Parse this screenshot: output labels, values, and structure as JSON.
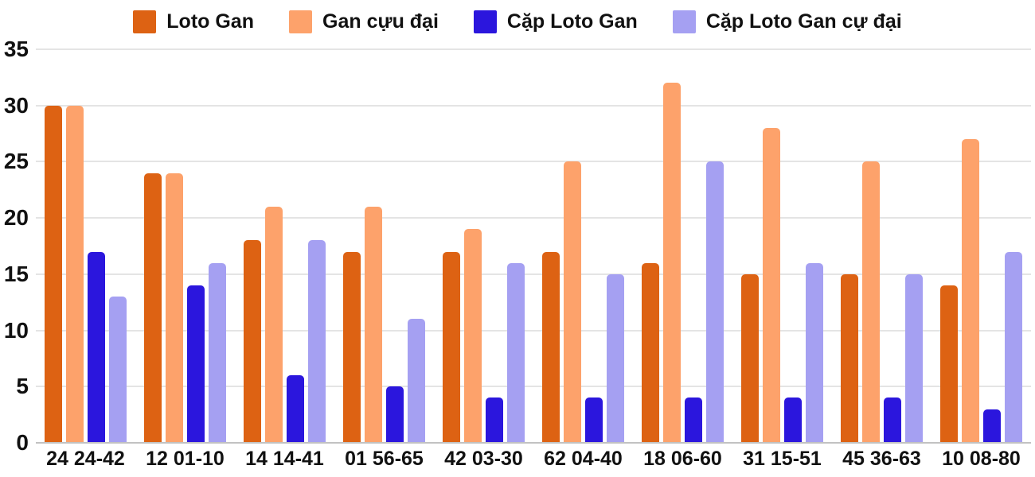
{
  "chart_data": {
    "type": "bar",
    "title": "",
    "xlabel": "",
    "ylabel": "",
    "categories": [
      "24 24-42",
      "12 01-10",
      "14 14-41",
      "01 56-65",
      "42 03-30",
      "62 04-40",
      "18 06-60",
      "31 15-51",
      "45 36-63",
      "10 08-80"
    ],
    "series": [
      {
        "name": "Loto Gan",
        "color": "#dd6213",
        "values": [
          30,
          24,
          18,
          17,
          17,
          17,
          16,
          15,
          15,
          14
        ]
      },
      {
        "name": "Gan cựu đại",
        "color": "#fda26b",
        "values": [
          30,
          24,
          21,
          21,
          19,
          25,
          32,
          28,
          25,
          27
        ]
      },
      {
        "name": "Cặp Loto Gan",
        "color": "#2b16dd",
        "values": [
          17,
          14,
          6,
          5,
          4,
          4,
          4,
          4,
          4,
          3
        ]
      },
      {
        "name": "Cặp Loto Gan cự đại",
        "color": "#a5a0f2",
        "values": [
          13,
          16,
          18,
          11,
          16,
          15,
          25,
          16,
          15,
          17
        ]
      }
    ],
    "y_ticks": [
      0,
      5,
      10,
      15,
      20,
      25,
      30,
      35
    ],
    "ylim": [
      0,
      35
    ],
    "grid": true,
    "legend_position": "top",
    "colors": {
      "gridline": "#e4e4e4",
      "baseline": "#c2c2c2",
      "text": "#111111",
      "background": "#ffffff"
    }
  }
}
